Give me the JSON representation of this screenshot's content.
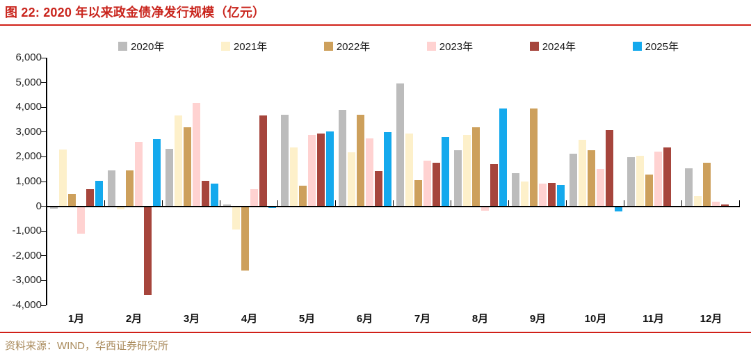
{
  "header": {
    "title": "图 22: 2020 年以来政金债净发行规模（亿元）"
  },
  "footer": {
    "source": "资料来源：WIND，华西证券研究所"
  },
  "colors": {
    "title_red": "#c9251d",
    "rule_red": "#d02018",
    "source_tan": "#a98a5b",
    "axis": "#000000"
  },
  "chart_data": {
    "type": "bar",
    "title": "2020 年以来政金债净发行规模（亿元）",
    "categories": [
      "1月",
      "2月",
      "3月",
      "4月",
      "5月",
      "6月",
      "7月",
      "8月",
      "9月",
      "10月",
      "11月",
      "12月"
    ],
    "series": [
      {
        "name": "2020年",
        "color": "#bcbcbc",
        "values": [
          -60,
          1440,
          2310,
          80,
          3690,
          3900,
          4950,
          2270,
          1340,
          2110,
          1970,
          1530
        ]
      },
      {
        "name": "2021年",
        "color": "#fdf0ca",
        "values": [
          2300,
          -100,
          3680,
          -920,
          2370,
          2180,
          2930,
          2870,
          990,
          2680,
          2040,
          410
        ]
      },
      {
        "name": "2022年",
        "color": "#cda05c",
        "values": [
          500,
          1460,
          3190,
          -2570,
          820,
          3700,
          1050,
          3190,
          3950,
          2270,
          1270,
          1760
        ]
      },
      {
        "name": "2023年",
        "color": "#ffd2d1",
        "values": [
          -1080,
          2600,
          4180,
          680,
          2870,
          2750,
          1830,
          -150,
          920,
          1500,
          2210,
          190
        ]
      },
      {
        "name": "2024年",
        "color": "#a6453c",
        "values": [
          690,
          -3550,
          1030,
          3670,
          2930,
          1430,
          1770,
          1690,
          930,
          3080,
          2370,
          60
        ]
      },
      {
        "name": "2025年",
        "color": "#14a9ed",
        "values": [
          1030,
          2720,
          910,
          -50,
          3020,
          3000,
          2800,
          3940,
          870,
          -180,
          null,
          null
        ]
      }
    ],
    "ylim": [
      -4000,
      6000
    ],
    "ytick_step": 1000,
    "ytick_labels": [
      "6,000",
      "5,000",
      "4,000",
      "3,000",
      "2,000",
      "1,000",
      "0",
      "-1,000",
      "-2,000",
      "-3,000",
      "-4,000"
    ],
    "legend_position": "top",
    "grid": false
  }
}
